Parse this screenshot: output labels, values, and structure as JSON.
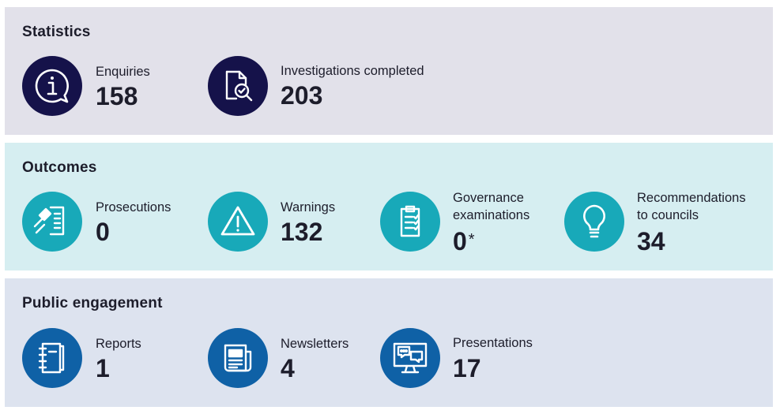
{
  "colors": {
    "statistics_bg": "#e2e1ea",
    "outcomes_bg": "#d6eef1",
    "engagement_bg": "#dde3ef",
    "statistics_circle": "#15124a",
    "outcomes_circle": "#18a9b9",
    "engagement_circle": "#0f61a6"
  },
  "statistics": {
    "title": "Statistics",
    "items": [
      {
        "label": "Enquiries",
        "value": "158",
        "icon": "info-speech-bubble-icon"
      },
      {
        "label": "Investigations completed",
        "value": "203",
        "icon": "document-search-icon"
      }
    ]
  },
  "outcomes": {
    "title": "Outcomes",
    "items": [
      {
        "label": "Prosecutions",
        "value": "0",
        "icon": "gavel-document-icon"
      },
      {
        "label": "Warnings",
        "value": "132",
        "icon": "warning-triangle-icon"
      },
      {
        "label_line1": "Governance",
        "label_line2": "examinations",
        "value": "0",
        "footnote": "*",
        "icon": "clipboard-checklist-icon"
      },
      {
        "label_line1": "Recommendations",
        "label_line2": "to councils",
        "value": "34",
        "icon": "lightbulb-icon"
      }
    ]
  },
  "engagement": {
    "title": "Public engagement",
    "items": [
      {
        "label": "Reports",
        "value": "1",
        "icon": "notebook-icon"
      },
      {
        "label": "Newsletters",
        "value": "4",
        "icon": "newspaper-icon"
      },
      {
        "label": "Presentations",
        "value": "17",
        "icon": "monitor-chat-icon"
      }
    ]
  }
}
